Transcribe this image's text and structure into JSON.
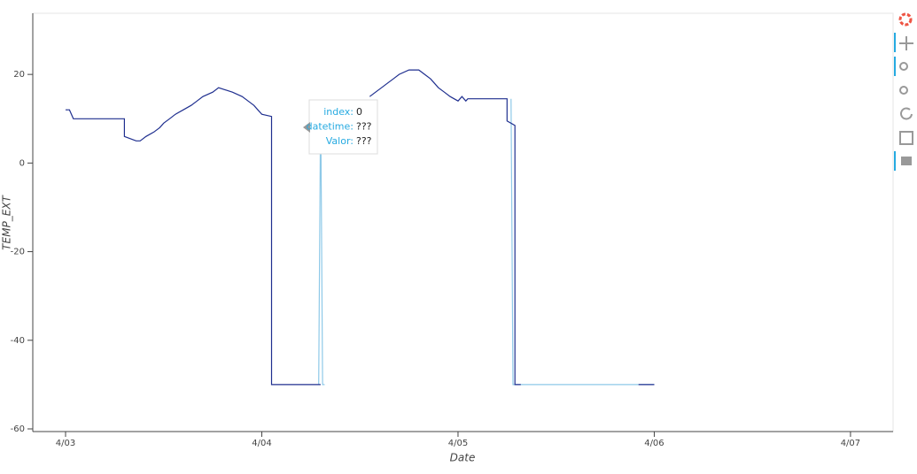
{
  "chart_data": {
    "type": "line",
    "x_label": "Date",
    "y_label": "TEMP_EXT",
    "xlim": [
      -0.167,
      4.217
    ],
    "ylim": [
      -60.6,
      33.8
    ],
    "xticks": [
      {
        "value": 0,
        "label": "4/03"
      },
      {
        "value": 1,
        "label": "4/04"
      },
      {
        "value": 2,
        "label": "4/05"
      },
      {
        "value": 3,
        "label": "4/06"
      },
      {
        "value": 4,
        "label": "4/07"
      }
    ],
    "yticks": [
      -60,
      -40,
      -20,
      0,
      20
    ],
    "grid": false,
    "series": [
      {
        "color": "#1f2f8f",
        "x": [
          0,
          0.02,
          0.03,
          0.04,
          0.3,
          0.3,
          0.36,
          0.38,
          0.41,
          0.45,
          0.48,
          0.5,
          0.53,
          0.56,
          0.6,
          0.64,
          0.67,
          0.7,
          0.75,
          0.78,
          0.85,
          0.9,
          0.93,
          0.96,
          0.98,
          1.0,
          1.05,
          1.05,
          1.3,
          1.42,
          1.55,
          1.58,
          1.61,
          1.64,
          1.67,
          1.7,
          1.75,
          1.8,
          1.83,
          1.86,
          1.88,
          1.9,
          1.93,
          1.96,
          2.0,
          2.02,
          2.04,
          2.05,
          2.25,
          2.25,
          2.29,
          2.29,
          2.32,
          2.6,
          2.92,
          3.0
        ],
        "values": [
          12,
          12,
          11,
          10,
          10,
          6,
          5,
          5,
          6,
          7,
          8,
          9,
          10,
          11,
          12,
          13,
          14,
          15,
          16,
          17,
          16,
          15,
          14,
          13,
          12,
          11,
          10.5,
          -50,
          -50,
          null,
          15,
          16,
          17,
          18,
          19,
          20,
          21,
          21,
          20,
          19,
          18,
          17,
          16,
          15,
          14,
          15,
          14,
          14.5,
          14.5,
          9.5,
          8.5,
          -50,
          -50,
          null,
          -50,
          -50
        ]
      },
      {
        "color": "#8ec9e8",
        "x": [
          1.29,
          1.3,
          1.31,
          1.32,
          1.8,
          2.27,
          2.28,
          3.0
        ],
        "values": [
          -50,
          14,
          -50,
          -50,
          null,
          14.5,
          -50,
          -50
        ]
      }
    ],
    "tooltip": {
      "rows": [
        [
          "index:",
          "0"
        ],
        [
          "datetime:",
          "???"
        ],
        [
          "Valor:",
          "???"
        ]
      ]
    }
  }
}
